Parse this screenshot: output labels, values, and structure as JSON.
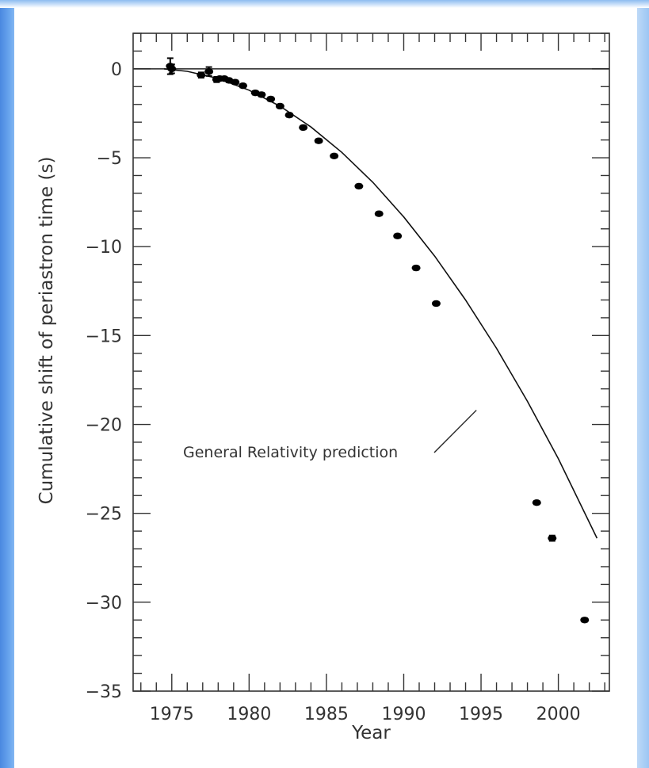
{
  "chart_data": {
    "type": "scatter",
    "title": "",
    "xlabel": "Year",
    "ylabel": "Cumulative shift of periastron time (s)",
    "xlim": [
      1972.5,
      2003.3
    ],
    "ylim": [
      -35,
      2
    ],
    "x_ticks": [
      1975,
      1980,
      1985,
      1990,
      1995,
      2000
    ],
    "y_ticks": [
      0,
      -5,
      -10,
      -15,
      -20,
      -25,
      -30,
      -35
    ],
    "x_tick_labels": [
      "1975",
      "1980",
      "1985",
      "1990",
      "1995",
      "2000"
    ],
    "y_tick_labels": [
      "0",
      "−5",
      "−10",
      "−15",
      "−20",
      "−25",
      "−30",
      "−35"
    ],
    "grid": false,
    "series": [
      {
        "kind": "points-with-errorbars",
        "x": [
          1974.9,
          1975.0,
          1976.9,
          1977.4,
          1977.9,
          1978.1,
          1978.4,
          1978.7,
          1979.1,
          1979.6,
          1980.4,
          1980.8,
          1981.4,
          1982.0,
          1982.6,
          1983.5,
          1984.5,
          1985.5,
          1987.1,
          1988.4,
          1989.6,
          1990.8,
          1992.1,
          1998.6,
          1999.6,
          2001.7
        ],
        "y": [
          0.15,
          0.0,
          -0.35,
          -0.15,
          -0.6,
          -0.55,
          -0.55,
          -0.65,
          -0.75,
          -0.95,
          -1.35,
          -1.45,
          -1.7,
          -2.1,
          -2.6,
          -3.3,
          -4.05,
          -4.9,
          -6.6,
          -8.15,
          -9.4,
          -11.2,
          -13.2,
          -24.4,
          -26.4,
          -31.0
        ],
        "y_err": [
          0.45,
          0.25,
          0.15,
          0.25,
          0.15,
          0.1,
          0.1,
          0.1,
          0.1,
          0.1,
          0.1,
          0.1,
          0.1,
          0.1,
          0.1,
          0.1,
          0.1,
          0.1,
          0.1,
          0.1,
          0.1,
          0.1,
          0.1,
          0.1,
          0.15,
          0.1
        ]
      },
      {
        "kind": "line",
        "x": [
          1974.5,
          1976,
          1978,
          1980,
          1982,
          1984,
          1986,
          1988,
          1990,
          1992,
          1994,
          1996,
          1998,
          2000,
          2002.5
        ],
        "y": [
          0,
          -0.14,
          -0.54,
          -1.2,
          -2.1,
          -3.27,
          -4.7,
          -6.38,
          -8.33,
          -10.53,
          -13.0,
          -15.72,
          -18.7,
          -21.93,
          -26.4
        ]
      }
    ],
    "annotations": [
      {
        "text": "General Relativity prediction",
        "data_x": 1994.7,
        "data_y": -19.2
      }
    ]
  }
}
